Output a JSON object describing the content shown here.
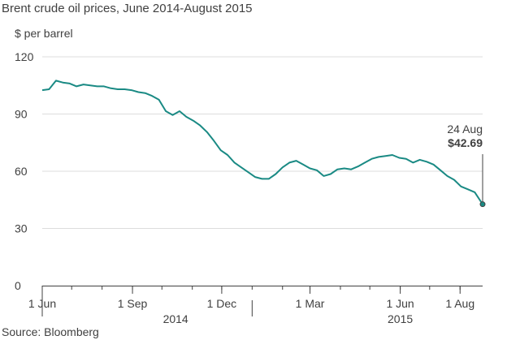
{
  "chart_data": {
    "type": "line",
    "title": "Brent crude oil prices, June 2014-August 2015",
    "ylabel": "$ per barrel",
    "source": "Source: Bloomberg",
    "ylim": [
      0,
      120
    ],
    "y_ticks": [
      "0",
      "30",
      "60",
      "90",
      "120"
    ],
    "x_range": [
      "2014-06-01",
      "2015-08-24"
    ],
    "x_ticks": [
      {
        "date": "2014-06-01",
        "label": "1 Jun"
      },
      {
        "date": "2014-09-01",
        "label": "1 Sep"
      },
      {
        "date": "2014-12-01",
        "label": "1 Dec"
      },
      {
        "date": "2015-03-01",
        "label": "1 Mar"
      },
      {
        "date": "2015-06-01",
        "label": "1 Jun"
      },
      {
        "date": "2015-08-01",
        "label": "1 Aug"
      }
    ],
    "year_labels": [
      {
        "date": "2014-10-15",
        "label": "2014"
      },
      {
        "date": "2015-06-01",
        "label": "2015"
      }
    ],
    "annotation": {
      "date": "2015-08-24",
      "label_date": "24 Aug",
      "label_value": "$42.69"
    },
    "color": "#1a8a84",
    "grid": true,
    "series": [
      {
        "x": [
          "2014-06-01",
          "2014-06-08",
          "2014-06-15",
          "2014-06-22",
          "2014-06-29",
          "2014-07-06",
          "2014-07-13",
          "2014-07-20",
          "2014-07-27",
          "2014-08-03",
          "2014-08-10",
          "2014-08-17",
          "2014-08-24",
          "2014-08-31",
          "2014-09-07",
          "2014-09-14",
          "2014-09-21",
          "2014-09-28",
          "2014-10-05",
          "2014-10-12",
          "2014-10-19",
          "2014-10-26",
          "2014-11-02",
          "2014-11-09",
          "2014-11-16",
          "2014-11-23",
          "2014-11-30",
          "2014-12-07",
          "2014-12-14",
          "2014-12-21",
          "2014-12-28",
          "2015-01-04",
          "2015-01-11",
          "2015-01-18",
          "2015-01-25",
          "2015-02-01",
          "2015-02-08",
          "2015-02-15",
          "2015-02-22",
          "2015-03-01",
          "2015-03-08",
          "2015-03-15",
          "2015-03-22",
          "2015-03-29",
          "2015-04-05",
          "2015-04-12",
          "2015-04-19",
          "2015-04-26",
          "2015-05-03",
          "2015-05-10",
          "2015-05-17",
          "2015-05-24",
          "2015-05-31",
          "2015-06-07",
          "2015-06-14",
          "2015-06-21",
          "2015-06-28",
          "2015-07-05",
          "2015-07-12",
          "2015-07-19",
          "2015-07-26",
          "2015-08-02",
          "2015-08-09",
          "2015-08-16",
          "2015-08-24"
        ],
        "values": [
          102.5,
          103.0,
          107.5,
          106.5,
          106.0,
          104.5,
          105.5,
          105.0,
          104.5,
          104.5,
          103.5,
          103.0,
          103.0,
          102.5,
          101.5,
          101.0,
          99.5,
          97.5,
          91.5,
          89.5,
          91.5,
          88.5,
          86.5,
          84.0,
          80.5,
          76.0,
          71.0,
          68.5,
          64.5,
          62.0,
          59.5,
          57.0,
          56.0,
          56.0,
          58.5,
          62.0,
          64.5,
          65.5,
          63.5,
          61.5,
          60.5,
          57.5,
          58.5,
          61.0,
          61.5,
          61.0,
          62.5,
          64.5,
          66.5,
          67.5,
          68.0,
          68.5,
          67.0,
          66.5,
          64.5,
          66.0,
          65.0,
          63.5,
          60.5,
          57.5,
          55.5,
          52.0,
          50.5,
          49.0,
          42.69
        ]
      }
    ]
  }
}
